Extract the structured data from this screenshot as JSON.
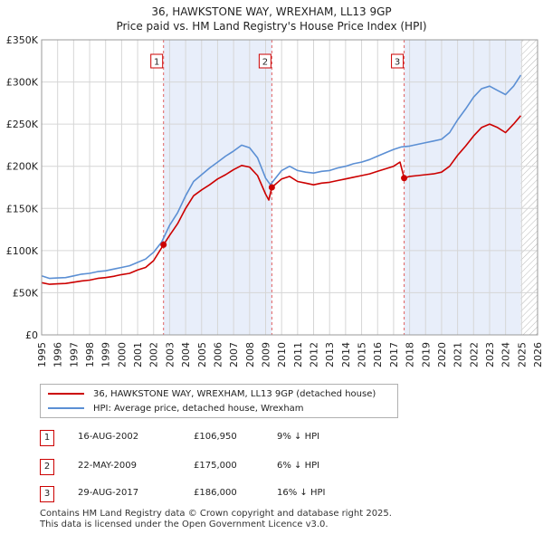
{
  "title_line1": "36, HAWKSTONE WAY, WREXHAM, LL13 9GP",
  "title_line2": "Price paid vs. HM Land Registry's House Price Index (HPI)",
  "legend": {
    "property_label": "36, HAWKSTONE WAY, WREXHAM, LL13 9GP (detached house)",
    "hpi_label": "HPI: Average price, detached house, Wrexham"
  },
  "sales": [
    {
      "num": "1",
      "date": "16-AUG-2002",
      "price": "£106,950",
      "hpi": "9% ↓ HPI"
    },
    {
      "num": "2",
      "date": "22-MAY-2009",
      "price": "£175,000",
      "hpi": "6% ↓ HPI"
    },
    {
      "num": "3",
      "date": "29-AUG-2017",
      "price": "£186,000",
      "hpi": "16% ↓ HPI"
    }
  ],
  "footer_line1": "Contains HM Land Registry data © Crown copyright and database right 2025.",
  "footer_line2": "This data is licensed under the Open Government Licence v3.0.",
  "colors": {
    "property": "#cc0000",
    "hpi": "#5b8fd4",
    "shade": "#e8eefa",
    "grid": "#d6d6d6",
    "hatch": "#b8b8b8"
  },
  "chart_data": {
    "type": "line",
    "xlim": [
      1995,
      2026
    ],
    "ylim": [
      0,
      350000
    ],
    "yticks": [
      0,
      50000,
      100000,
      150000,
      200000,
      250000,
      300000,
      350000
    ],
    "ytick_labels": [
      "£0",
      "£50K",
      "£100K",
      "£150K",
      "£200K",
      "£250K",
      "£300K",
      "£350K"
    ],
    "xticks": [
      "1995",
      "1996",
      "1997",
      "1998",
      "1999",
      "2000",
      "2001",
      "2002",
      "2003",
      "2004",
      "2005",
      "2006",
      "2007",
      "2008",
      "2009",
      "2010",
      "2011",
      "2012",
      "2013",
      "2014",
      "2015",
      "2016",
      "2017",
      "2018",
      "2019",
      "2020",
      "2021",
      "2022",
      "2023",
      "2024",
      "2025",
      "2026"
    ],
    "shaded_ranges": [
      [
        2002.62,
        2009.39
      ],
      [
        2017.66,
        2024.95
      ]
    ],
    "future_from": 2024.95,
    "series": [
      {
        "name": "HPI: Average price, detached house, Wrexham",
        "points": [
          [
            1995.0,
            70000
          ],
          [
            1995.5,
            67000
          ],
          [
            1996.0,
            67500
          ],
          [
            1996.5,
            68000
          ],
          [
            1997.0,
            70000
          ],
          [
            1997.5,
            72000
          ],
          [
            1998.0,
            73000
          ],
          [
            1998.5,
            75000
          ],
          [
            1999.0,
            76000
          ],
          [
            1999.5,
            78000
          ],
          [
            2000.0,
            80000
          ],
          [
            2000.5,
            82000
          ],
          [
            2001.0,
            86000
          ],
          [
            2001.5,
            90000
          ],
          [
            2002.0,
            98000
          ],
          [
            2002.5,
            110000
          ],
          [
            2003.0,
            130000
          ],
          [
            2003.5,
            145000
          ],
          [
            2004.0,
            165000
          ],
          [
            2004.5,
            182000
          ],
          [
            2005.0,
            190000
          ],
          [
            2005.5,
            198000
          ],
          [
            2006.0,
            205000
          ],
          [
            2006.5,
            212000
          ],
          [
            2007.0,
            218000
          ],
          [
            2007.5,
            225000
          ],
          [
            2008.0,
            222000
          ],
          [
            2008.5,
            210000
          ],
          [
            2009.0,
            186000
          ],
          [
            2009.3,
            178000
          ],
          [
            2009.5,
            183000
          ],
          [
            2010.0,
            195000
          ],
          [
            2010.5,
            200000
          ],
          [
            2011.0,
            195000
          ],
          [
            2011.5,
            193000
          ],
          [
            2012.0,
            192000
          ],
          [
            2012.5,
            194000
          ],
          [
            2013.0,
            195000
          ],
          [
            2013.5,
            198000
          ],
          [
            2014.0,
            200000
          ],
          [
            2014.5,
            203000
          ],
          [
            2015.0,
            205000
          ],
          [
            2015.5,
            208000
          ],
          [
            2016.0,
            212000
          ],
          [
            2016.5,
            216000
          ],
          [
            2017.0,
            220000
          ],
          [
            2017.5,
            223000
          ],
          [
            2018.0,
            224000
          ],
          [
            2018.5,
            226000
          ],
          [
            2019.0,
            228000
          ],
          [
            2019.5,
            230000
          ],
          [
            2020.0,
            232000
          ],
          [
            2020.5,
            240000
          ],
          [
            2021.0,
            255000
          ],
          [
            2021.5,
            268000
          ],
          [
            2022.0,
            282000
          ],
          [
            2022.5,
            292000
          ],
          [
            2023.0,
            295000
          ],
          [
            2023.5,
            290000
          ],
          [
            2024.0,
            285000
          ],
          [
            2024.5,
            295000
          ],
          [
            2024.95,
            308000
          ]
        ]
      },
      {
        "name": "36, HAWKSTONE WAY, WREXHAM, LL13 9GP (detached house)",
        "points": [
          [
            1995.0,
            62000
          ],
          [
            1995.5,
            60000
          ],
          [
            1996.0,
            60500
          ],
          [
            1996.5,
            61000
          ],
          [
            1997.0,
            62500
          ],
          [
            1997.5,
            64000
          ],
          [
            1998.0,
            65000
          ],
          [
            1998.5,
            67000
          ],
          [
            1999.0,
            68000
          ],
          [
            1999.5,
            69500
          ],
          [
            2000.0,
            71500
          ],
          [
            2000.5,
            73000
          ],
          [
            2001.0,
            77000
          ],
          [
            2001.5,
            80000
          ],
          [
            2002.0,
            88000
          ],
          [
            2002.62,
            106950
          ],
          [
            2003.0,
            118000
          ],
          [
            2003.5,
            132000
          ],
          [
            2004.0,
            150000
          ],
          [
            2004.5,
            165000
          ],
          [
            2005.0,
            172000
          ],
          [
            2005.5,
            178000
          ],
          [
            2006.0,
            185000
          ],
          [
            2006.5,
            190000
          ],
          [
            2007.0,
            196000
          ],
          [
            2007.5,
            201000
          ],
          [
            2008.0,
            199000
          ],
          [
            2008.5,
            189000
          ],
          [
            2009.0,
            167000
          ],
          [
            2009.2,
            160000
          ],
          [
            2009.39,
            175000
          ],
          [
            2010.0,
            185000
          ],
          [
            2010.5,
            188000
          ],
          [
            2011.0,
            182000
          ],
          [
            2011.5,
            180000
          ],
          [
            2012.0,
            178000
          ],
          [
            2012.5,
            180000
          ],
          [
            2013.0,
            181000
          ],
          [
            2013.5,
            183000
          ],
          [
            2014.0,
            185000
          ],
          [
            2014.5,
            187000
          ],
          [
            2015.0,
            189000
          ],
          [
            2015.5,
            191000
          ],
          [
            2016.0,
            194000
          ],
          [
            2016.5,
            197000
          ],
          [
            2017.0,
            200000
          ],
          [
            2017.4,
            205000
          ],
          [
            2017.66,
            186000
          ],
          [
            2018.0,
            188000
          ],
          [
            2018.5,
            189000
          ],
          [
            2019.0,
            190000
          ],
          [
            2019.5,
            191000
          ],
          [
            2020.0,
            193000
          ],
          [
            2020.5,
            200000
          ],
          [
            2021.0,
            213000
          ],
          [
            2021.5,
            224000
          ],
          [
            2022.0,
            236000
          ],
          [
            2022.5,
            246000
          ],
          [
            2023.0,
            250000
          ],
          [
            2023.5,
            246000
          ],
          [
            2024.0,
            240000
          ],
          [
            2024.5,
            250000
          ],
          [
            2024.95,
            260000
          ]
        ]
      }
    ],
    "markers": [
      {
        "label": "1",
        "x": 2002.62,
        "y": 106950
      },
      {
        "label": "2",
        "x": 2009.39,
        "y": 175000
      },
      {
        "label": "3",
        "x": 2017.66,
        "y": 186000
      }
    ]
  }
}
